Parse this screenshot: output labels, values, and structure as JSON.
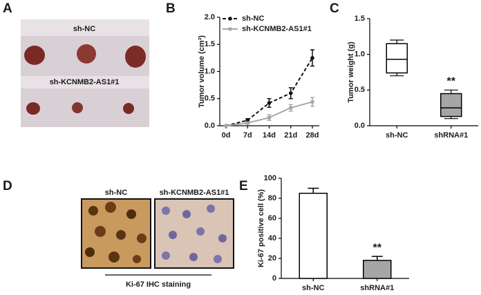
{
  "panel_labels": [
    "A",
    "B",
    "C",
    "D",
    "E"
  ],
  "photo_a": {
    "top_label": "sh-NC",
    "bottom_label": "sh-KCNMB2-AS1#1"
  },
  "photo_d": {
    "left_label": "sh-NC",
    "right_label": "sh-KCNMB2-AS1#1",
    "caption": "Ki-67 IHC staining"
  },
  "chart_data": [
    {
      "type": "line",
      "y_label": "Tumor volume (cm³)",
      "categories": [
        "0d",
        "7d",
        "14d",
        "21d",
        "28d"
      ],
      "ylim": [
        0,
        2
      ],
      "yticks": [
        {
          "value": 0,
          "label": "0.0"
        },
        {
          "value": 0.5,
          "label": "0.5"
        },
        {
          "value": 1,
          "label": "1.0"
        },
        {
          "value": 1.5,
          "label": "1.5"
        },
        {
          "value": 2,
          "label": "2.0"
        }
      ],
      "legend": "upper left",
      "series": [
        {
          "name": "sh-NC",
          "color": "#111111",
          "linestyle": "dashed",
          "values": [
            0,
            0.1,
            0.42,
            0.6,
            1.25
          ],
          "errors": [
            0,
            0.03,
            0.08,
            0.1,
            0.15
          ]
        },
        {
          "name": "sh-KCNMB2-AS1#1",
          "color": "#a6a6a6",
          "linestyle": "solid",
          "values": [
            0,
            0.05,
            0.15,
            0.33,
            0.44
          ],
          "errors": [
            0,
            0.02,
            0.05,
            0.06,
            0.08
          ]
        }
      ]
    },
    {
      "type": "box",
      "y_label": "Tumor weight (g)",
      "categories": [
        "sh-NC",
        "shRNA#1"
      ],
      "ylim": [
        0,
        1.5
      ],
      "yticks": [
        {
          "value": 0,
          "label": "0.0"
        },
        {
          "value": 0.5,
          "label": "0.5"
        },
        {
          "value": 1,
          "label": "1.0"
        },
        {
          "value": 1.5,
          "label": "1.5"
        }
      ],
      "boxes": [
        {
          "min": 0.7,
          "q1": 0.74,
          "median": 0.93,
          "q3": 1.15,
          "max": 1.2,
          "color": "#ffffff"
        },
        {
          "min": 0.1,
          "q1": 0.13,
          "median": 0.25,
          "q3": 0.45,
          "max": 0.5,
          "color": "#a6a6a6"
        }
      ],
      "annotation": "**"
    },
    {
      "type": "bar",
      "y_label": "Ki-67 positive cell (%)",
      "categories": [
        "sh-NC",
        "shRNA#1"
      ],
      "values": [
        85,
        18
      ],
      "errors": [
        5,
        4
      ],
      "colors": [
        "#ffffff",
        "#a6a6a6"
      ],
      "ylim": [
        0,
        100
      ],
      "yticks": [
        0,
        20,
        40,
        60,
        80,
        100
      ],
      "annotation": "**"
    }
  ]
}
